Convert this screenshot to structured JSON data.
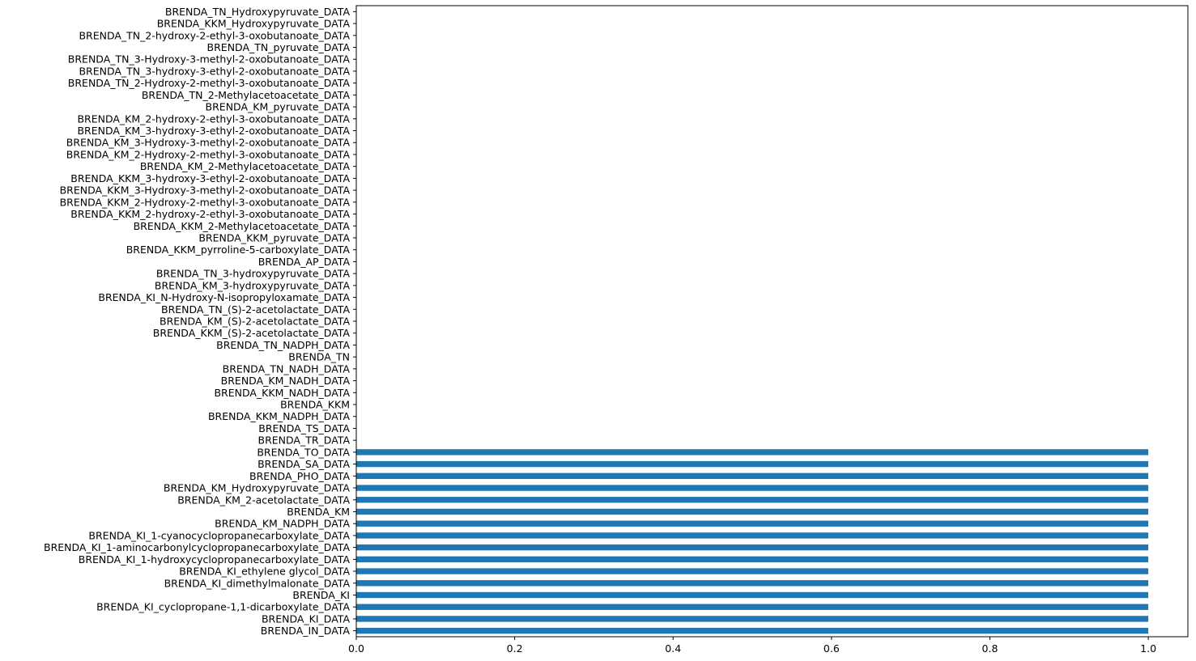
{
  "chart_data": {
    "type": "bar",
    "orientation": "horizontal",
    "title": "",
    "xlabel": "",
    "ylabel": "",
    "xlim": [
      0,
      1.05
    ],
    "x_ticks": [
      0.0,
      0.2,
      0.4,
      0.6,
      0.8,
      1.0
    ],
    "x_tick_labels": [
      "0.0",
      "0.2",
      "0.4",
      "0.6",
      "0.8",
      "1.0"
    ],
    "grid": false,
    "legend": "none",
    "bar_color": "#1f77b4",
    "categories": [
      "BRENDA_IN_DATA",
      "BRENDA_KI_DATA",
      "BRENDA_KI_cyclopropane-1,1-dicarboxylate_DATA",
      "BRENDA_KI",
      "BRENDA_KI_dimethylmalonate_DATA",
      "BRENDA_KI_ethylene glycol_DATA",
      "BRENDA_KI_1-hydroxycyclopropanecarboxylate_DATA",
      "BRENDA_KI_1-aminocarbonylcyclopropanecarboxylate_DATA",
      "BRENDA_KI_1-cyanocyclopropanecarboxylate_DATA",
      "BRENDA_KM_NADPH_DATA",
      "BRENDA_KM",
      "BRENDA_KM_2-acetolactate_DATA",
      "BRENDA_KM_Hydroxypyruvate_DATA",
      "BRENDA_PHO_DATA",
      "BRENDA_SA_DATA",
      "BRENDA_TO_DATA",
      "BRENDA_TR_DATA",
      "BRENDA_TS_DATA",
      "BRENDA_KKM_NADPH_DATA",
      "BRENDA_KKM",
      "BRENDA_KKM_NADH_DATA",
      "BRENDA_KM_NADH_DATA",
      "BRENDA_TN_NADH_DATA",
      "BRENDA_TN",
      "BRENDA_TN_NADPH_DATA",
      "BRENDA_KKM_(S)-2-acetolactate_DATA",
      "BRENDA_KM_(S)-2-acetolactate_DATA",
      "BRENDA_TN_(S)-2-acetolactate_DATA",
      "BRENDA_KI_N-Hydroxy-N-isopropyloxamate_DATA",
      "BRENDA_KM_3-hydroxypyruvate_DATA",
      "BRENDA_TN_3-hydroxypyruvate_DATA",
      "BRENDA_AP_DATA",
      "BRENDA_KKM_pyrroline-5-carboxylate_DATA",
      "BRENDA_KKM_pyruvate_DATA",
      "BRENDA_KKM_2-Methylacetoacetate_DATA",
      "BRENDA_KKM_2-hydroxy-2-ethyl-3-oxobutanoate_DATA",
      "BRENDA_KKM_2-Hydroxy-2-methyl-3-oxobutanoate_DATA",
      "BRENDA_KKM_3-Hydroxy-3-methyl-2-oxobutanoate_DATA",
      "BRENDA_KKM_3-hydroxy-3-ethyl-2-oxobutanoate_DATA",
      "BRENDA_KM_2-Methylacetoacetate_DATA",
      "BRENDA_KM_2-Hydroxy-2-methyl-3-oxobutanoate_DATA",
      "BRENDA_KM_3-Hydroxy-3-methyl-2-oxobutanoate_DATA",
      "BRENDA_KM_3-hydroxy-3-ethyl-2-oxobutanoate_DATA",
      "BRENDA_KM_2-hydroxy-2-ethyl-3-oxobutanoate_DATA",
      "BRENDA_KM_pyruvate_DATA",
      "BRENDA_TN_2-Methylacetoacetate_DATA",
      "BRENDA_TN_2-Hydroxy-2-methyl-3-oxobutanoate_DATA",
      "BRENDA_TN_3-hydroxy-3-ethyl-2-oxobutanoate_DATA",
      "BRENDA_TN_3-Hydroxy-3-methyl-2-oxobutanoate_DATA",
      "BRENDA_TN_pyruvate_DATA",
      "BRENDA_TN_2-hydroxy-2-ethyl-3-oxobutanoate_DATA",
      "BRENDA_KKM_Hydroxypyruvate_DATA",
      "BRENDA_TN_Hydroxypyruvate_DATA"
    ],
    "values": [
      1,
      1,
      1,
      1,
      1,
      1,
      1,
      1,
      1,
      1,
      1,
      1,
      1,
      1,
      1,
      1,
      0,
      0,
      0,
      0,
      0,
      0,
      0,
      0,
      0,
      0,
      0,
      0,
      0,
      0,
      0,
      0,
      0,
      0,
      0,
      0,
      0,
      0,
      0,
      0,
      0,
      0,
      0,
      0,
      0,
      0,
      0,
      0,
      0,
      0,
      0,
      0,
      0
    ]
  }
}
